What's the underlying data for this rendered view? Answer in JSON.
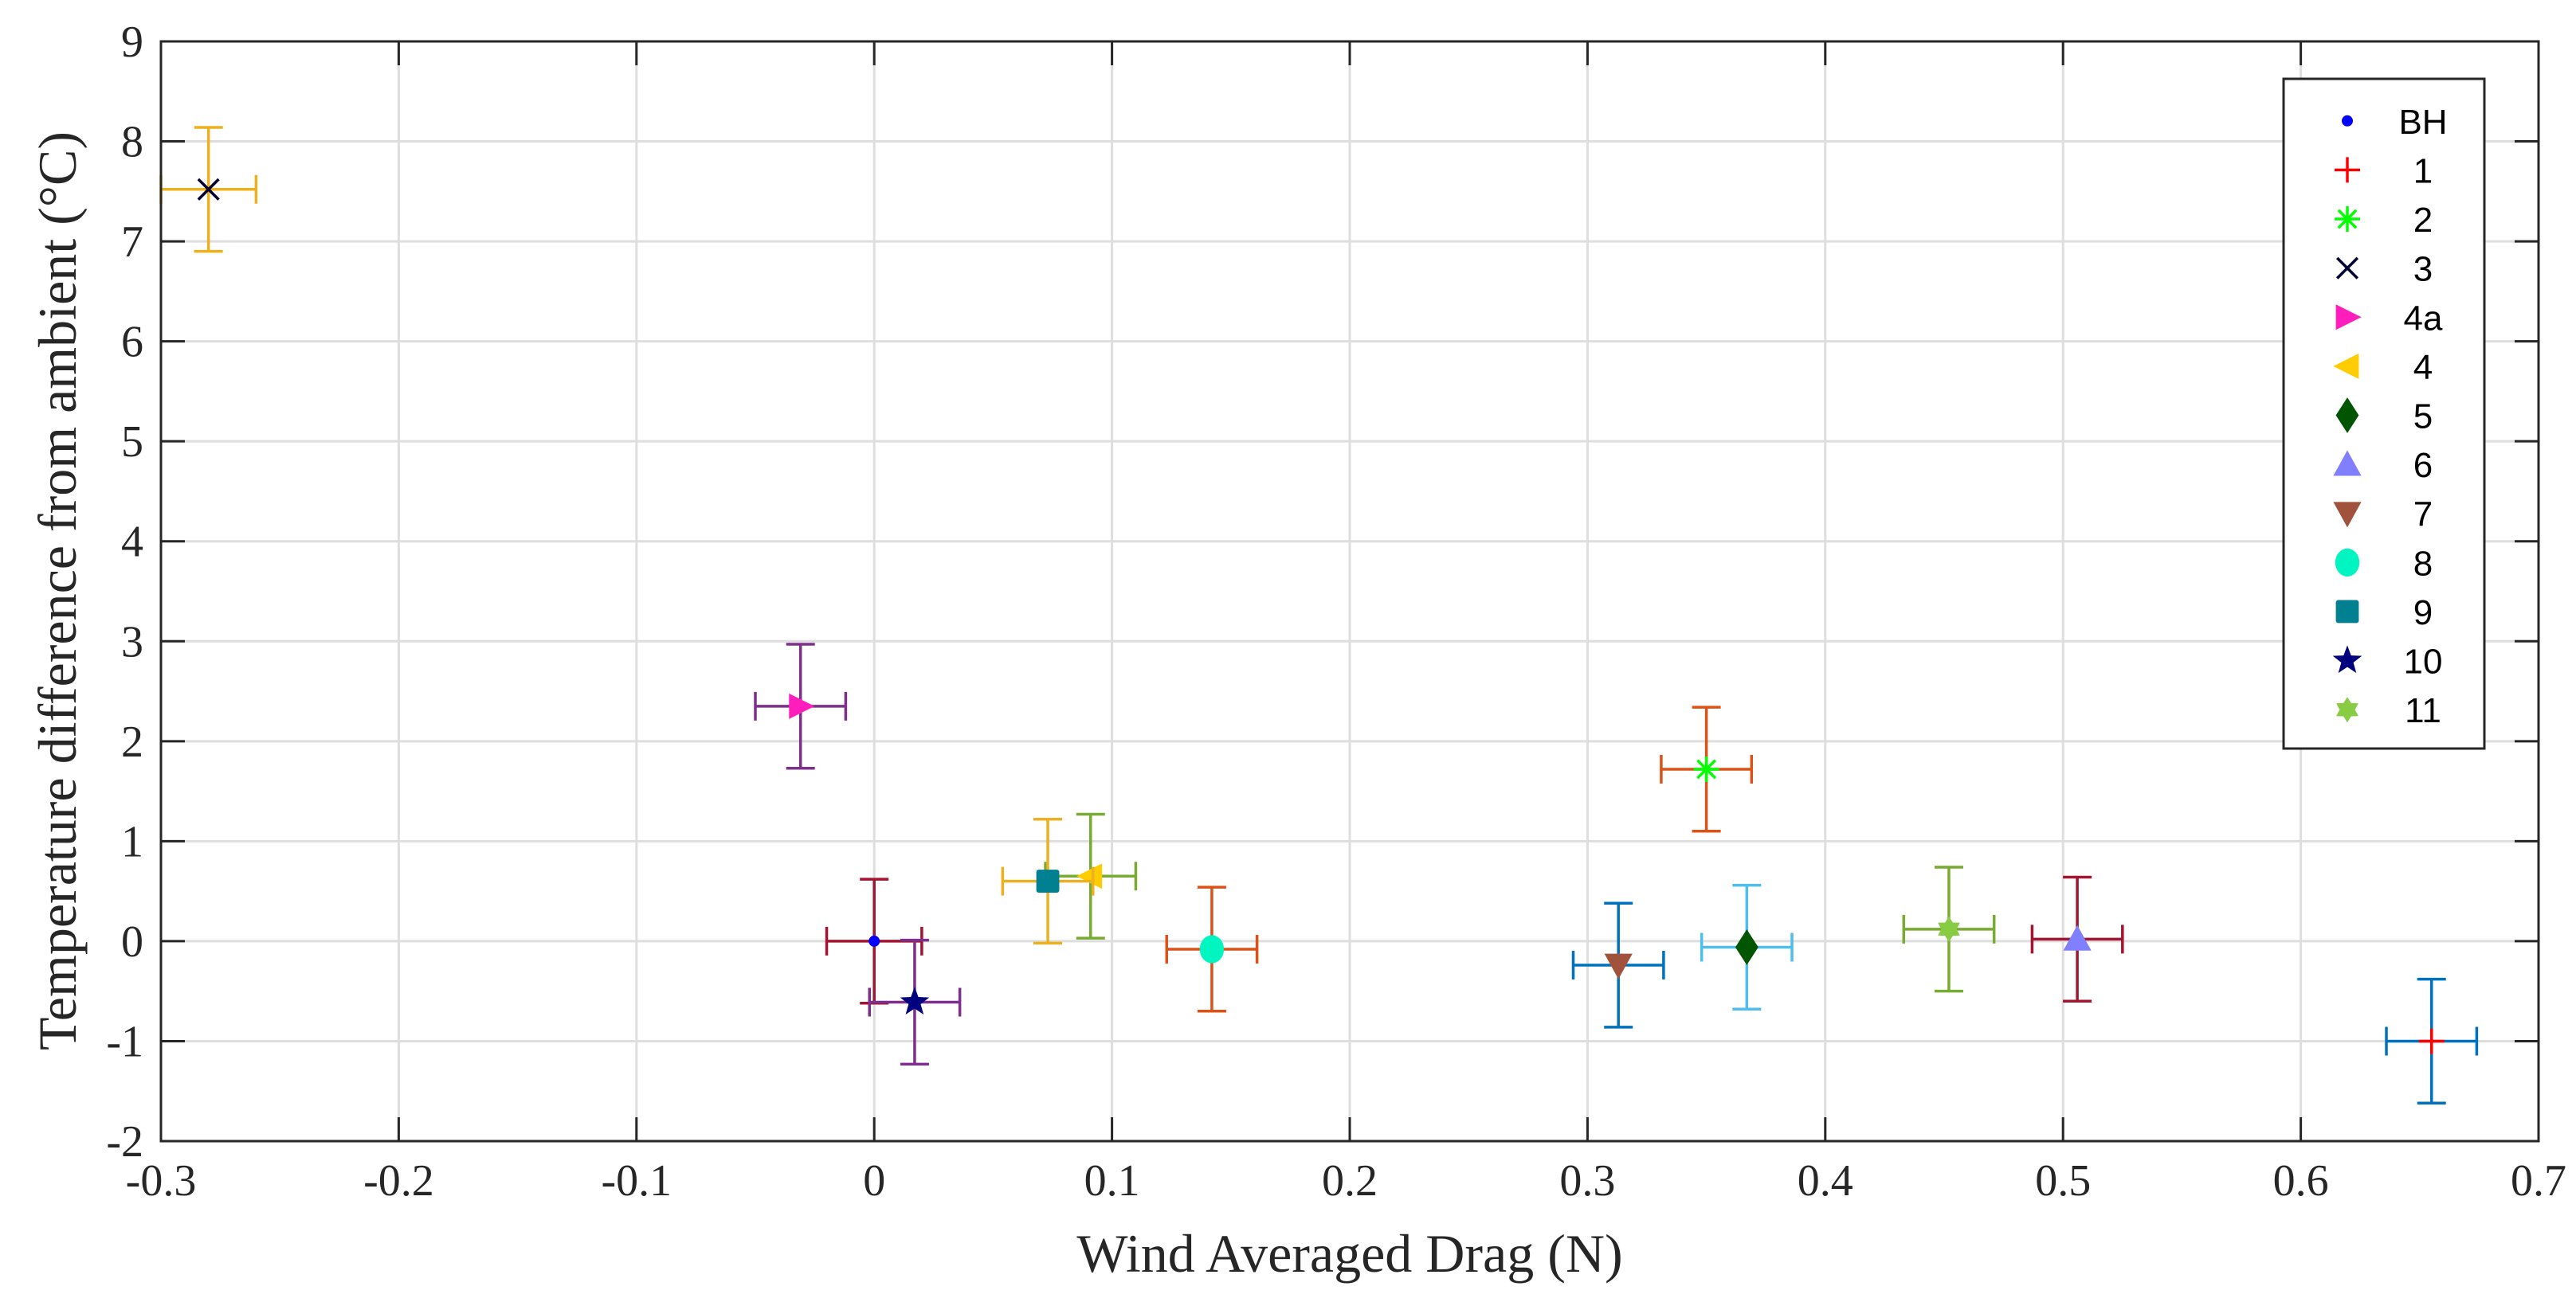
{
  "chart_data": {
    "type": "scatter",
    "title": "",
    "xlabel": "Wind Averaged Drag (N)",
    "ylabel": "Temperature difference from ambient (°C)",
    "xlim": [
      -0.3,
      0.7
    ],
    "ylim": [
      -2,
      9
    ],
    "xticks": [
      -0.3,
      -0.2,
      -0.1,
      0,
      0.1,
      0.2,
      0.3,
      0.4,
      0.5,
      0.6,
      0.7
    ],
    "xtick_labels": [
      "-0.3",
      "-0.2",
      "-0.1",
      "0",
      "0.1",
      "0.2",
      "0.3",
      "0.4",
      "0.5",
      "0.6",
      "0.7"
    ],
    "yticks": [
      -2,
      -1,
      0,
      1,
      2,
      3,
      4,
      5,
      6,
      7,
      8,
      9
    ],
    "ytick_labels": [
      "-2",
      "-1",
      "0",
      "1",
      "2",
      "3",
      "4",
      "5",
      "6",
      "7",
      "8",
      "9"
    ],
    "grid": true,
    "legend_position": "top-right",
    "series": [
      {
        "name": "BH",
        "x": 0.0,
        "y": 0.0,
        "xerr": 0.02,
        "yerr": 0.62,
        "marker": "dot",
        "color": "#0000ff",
        "errcolor": "#a2142f"
      },
      {
        "name": "1",
        "x": 0.655,
        "y": -1.0,
        "xerr": 0.019,
        "yerr": 0.62,
        "marker": "plus",
        "color": "#ff0000",
        "errcolor": "#0072bd"
      },
      {
        "name": "2",
        "x": 0.35,
        "y": 1.72,
        "xerr": 0.019,
        "yerr": 0.62,
        "marker": "asterisk",
        "color": "#00ff00",
        "errcolor": "#d95319"
      },
      {
        "name": "3",
        "x": -0.28,
        "y": 7.52,
        "xerr": 0.02,
        "yerr": 0.62,
        "marker": "x",
        "color": "#000033",
        "errcolor": "#edb120"
      },
      {
        "name": "4a",
        "x": -0.031,
        "y": 2.35,
        "xerr": 0.019,
        "yerr": 0.62,
        "marker": "triangle-right",
        "color": "#ff1dbc",
        "errcolor": "#7e2f8e"
      },
      {
        "name": "4",
        "x": 0.091,
        "y": 0.65,
        "xerr": 0.019,
        "yerr": 0.62,
        "marker": "triangle-left",
        "color": "#ffcc00",
        "errcolor": "#77ac30"
      },
      {
        "name": "5",
        "x": 0.367,
        "y": -0.06,
        "xerr": 0.019,
        "yerr": 0.62,
        "marker": "diamond",
        "color": "#005500",
        "errcolor": "#4dbeee"
      },
      {
        "name": "6",
        "x": 0.506,
        "y": 0.02,
        "xerr": 0.019,
        "yerr": 0.62,
        "marker": "triangle-up",
        "color": "#8080ff",
        "errcolor": "#a2142f"
      },
      {
        "name": "7",
        "x": 0.313,
        "y": -0.24,
        "xerr": 0.019,
        "yerr": 0.62,
        "marker": "triangle-down",
        "color": "#a0523c",
        "errcolor": "#0072bd"
      },
      {
        "name": "8",
        "x": 0.142,
        "y": -0.08,
        "xerr": 0.019,
        "yerr": 0.62,
        "marker": "circle",
        "color": "#00f5c0",
        "errcolor": "#d95319"
      },
      {
        "name": "9",
        "x": 0.073,
        "y": 0.6,
        "xerr": 0.019,
        "yerr": 0.62,
        "marker": "square",
        "color": "#008090",
        "errcolor": "#edb120"
      },
      {
        "name": "10",
        "x": 0.017,
        "y": -0.61,
        "xerr": 0.019,
        "yerr": 0.62,
        "marker": "pentagram",
        "color": "#00007f",
        "errcolor": "#7e2f8e"
      },
      {
        "name": "11",
        "x": 0.452,
        "y": 0.12,
        "xerr": 0.019,
        "yerr": 0.62,
        "marker": "hexagram",
        "color": "#88cc44",
        "errcolor": "#77ac30"
      }
    ]
  }
}
